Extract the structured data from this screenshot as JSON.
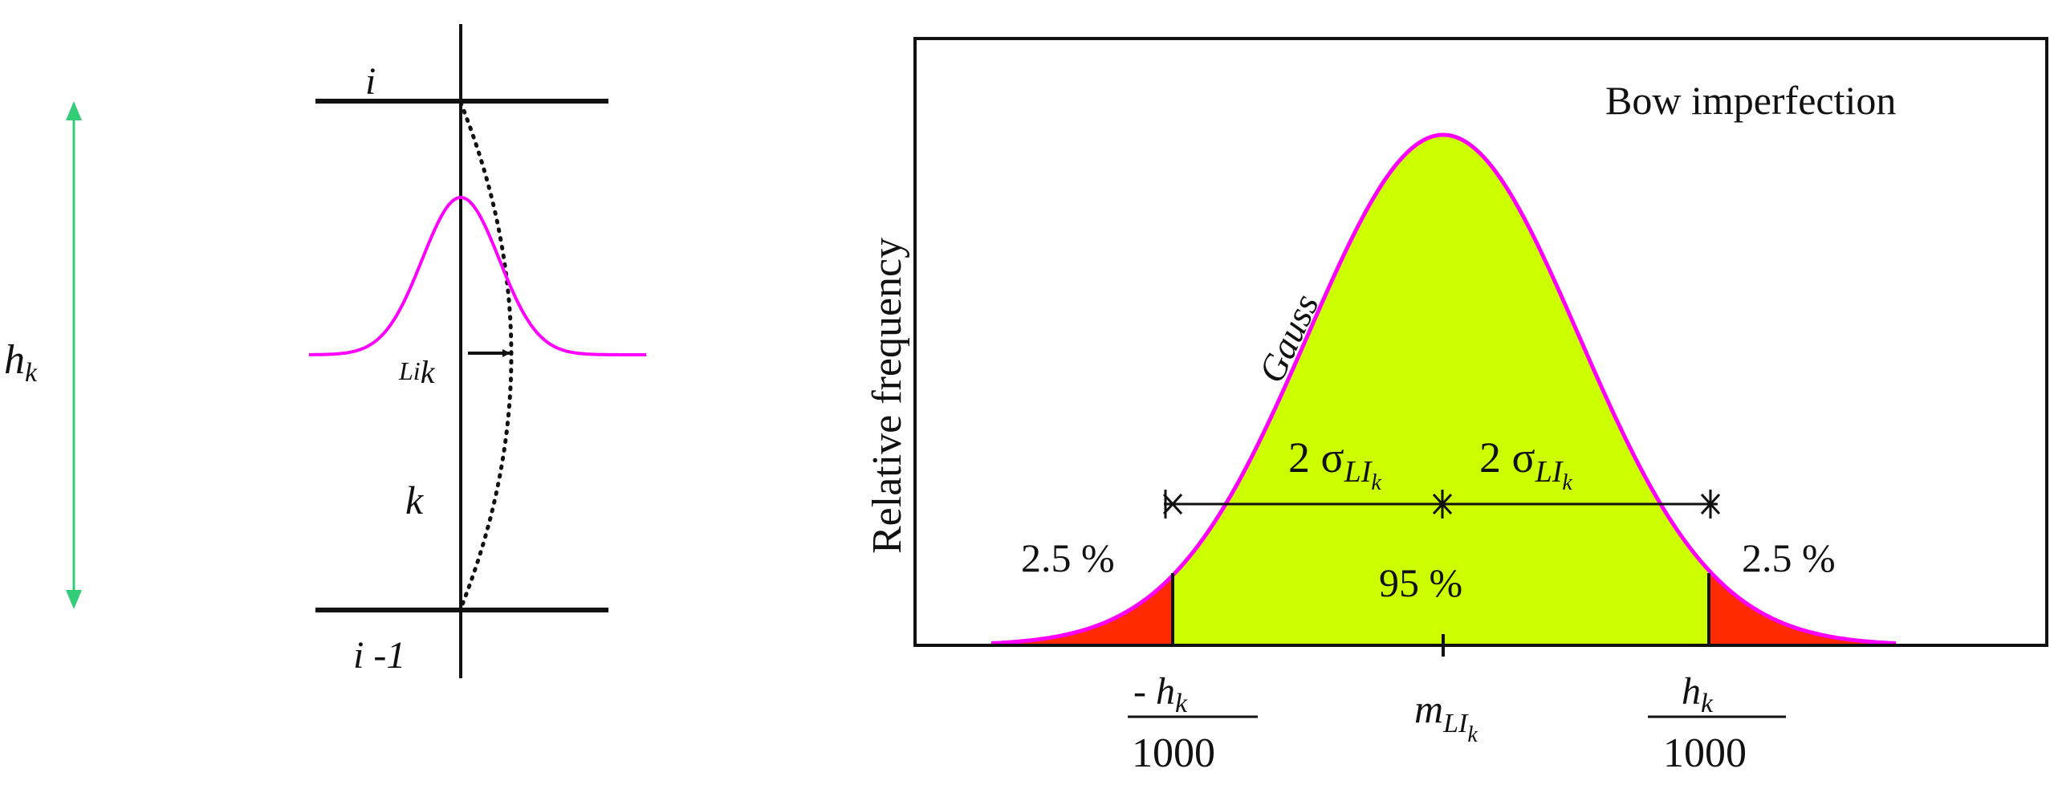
{
  "left_panel": {
    "height_label": {
      "main": "h",
      "sub": "k"
    },
    "floor_top": "i",
    "floor_bottom": "i -1",
    "storey": "k",
    "imperfection": {
      "main": "Li",
      "sub": "k"
    }
  },
  "right_panel": {
    "title": "Bow imperfection",
    "ylabel": "Relative frequency",
    "curve_label": "Gauss",
    "sigma_label": {
      "prefix": "2 σ",
      "sub_main": "LI",
      "sub_sub": "k"
    },
    "center_pct": "95 %",
    "left_tail_pct": "2.5 %",
    "right_tail_pct": "2.5 %",
    "tick_left": {
      "num_main": "- h",
      "num_sub": "k",
      "den": "1000"
    },
    "tick_center": {
      "main": "m",
      "sub_main": "LI",
      "sub_sub": "k"
    },
    "tick_right": {
      "num_main": "h",
      "num_sub": "k",
      "den": "1000"
    }
  },
  "colors": {
    "curve": "#ff00ff",
    "fill_center": "#ccff00",
    "fill_tails": "#ff2a00",
    "height_arrow": "#33cc77",
    "line": "#111111"
  }
}
